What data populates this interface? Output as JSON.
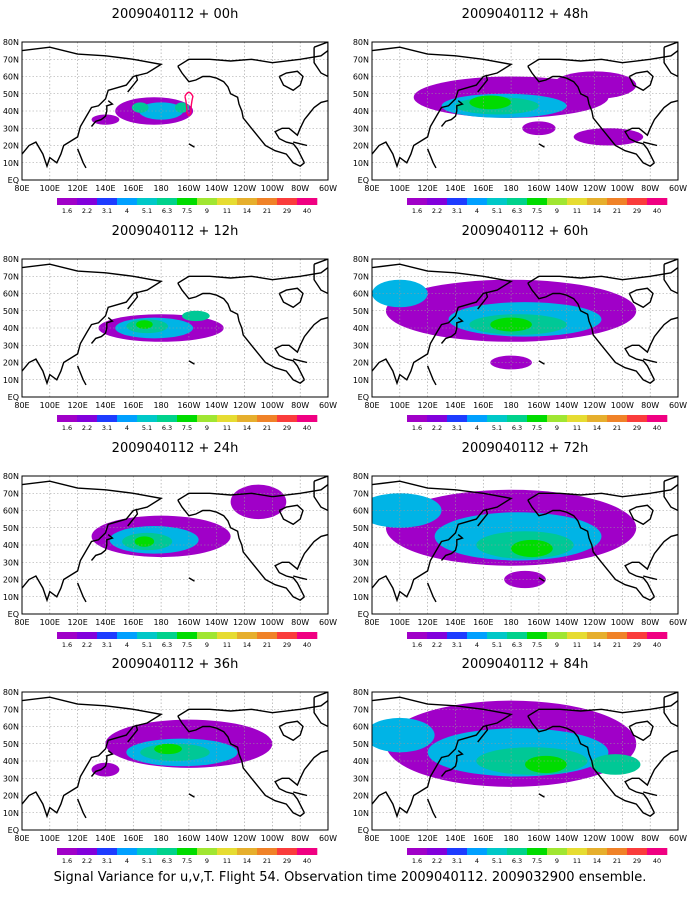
{
  "footer": "Signal Variance for u,v,T. Flight 54. Observation time 2009040112. 2009032900 ensemble.",
  "lon_labels": [
    "80E",
    "100E",
    "120E",
    "140E",
    "160E",
    "180",
    "160W",
    "140W",
    "120W",
    "100W",
    "80W",
    "60W"
  ],
  "lat_labels": [
    "EQ",
    "10N",
    "20N",
    "30N",
    "40N",
    "50N",
    "60N",
    "70N",
    "80N"
  ],
  "colorbar": {
    "labels": [
      "1.6",
      "2.2",
      "3.1",
      "4",
      "5.1",
      "6.3",
      "7.5",
      "9",
      "11",
      "14",
      "21",
      "29",
      "40"
    ],
    "colors": [
      "#a000c8",
      "#8200dc",
      "#1e3cff",
      "#00a0ff",
      "#00c8c8",
      "#00d28c",
      "#00dc00",
      "#a0e632",
      "#e6dc32",
      "#e6af2d",
      "#f08228",
      "#fa3c3c",
      "#f00082"
    ]
  },
  "panels": [
    {
      "id": "p00",
      "title": "2009040112 + 00h",
      "blobs": [
        {
          "x": 175,
          "y": 40,
          "rx": 28,
          "ry": 8,
          "l": 0
        },
        {
          "x": 180,
          "y": 40,
          "rx": 16,
          "ry": 5,
          "l": 1
        },
        {
          "x": 165,
          "y": 42,
          "rx": 6,
          "ry": 3,
          "l": 2
        },
        {
          "x": 195,
          "y": 42,
          "rx": 5,
          "ry": 3,
          "l": 2
        },
        {
          "x": 140,
          "y": 35,
          "rx": 10,
          "ry": 3,
          "l": 0
        }
      ],
      "track": true
    },
    {
      "id": "p48",
      "title": "2009040112 + 48h",
      "blobs": [
        {
          "x": 180,
          "y": 48,
          "rx": 70,
          "ry": 12,
          "l": 0
        },
        {
          "x": 175,
          "y": 43,
          "rx": 45,
          "ry": 7,
          "l": 1
        },
        {
          "x": 170,
          "y": 43,
          "rx": 30,
          "ry": 5,
          "l": 2
        },
        {
          "x": 165,
          "y": 45,
          "rx": 15,
          "ry": 4,
          "l": 3
        },
        {
          "x": 240,
          "y": 55,
          "rx": 30,
          "ry": 8,
          "l": 0
        },
        {
          "x": 250,
          "y": 25,
          "rx": 25,
          "ry": 5,
          "l": 0
        },
        {
          "x": 200,
          "y": 30,
          "rx": 12,
          "ry": 4,
          "l": 0
        }
      ],
      "track": false
    },
    {
      "id": "p12",
      "title": "2009040112 + 12h",
      "blobs": [
        {
          "x": 180,
          "y": 40,
          "rx": 45,
          "ry": 8,
          "l": 0
        },
        {
          "x": 175,
          "y": 40,
          "rx": 28,
          "ry": 6,
          "l": 1
        },
        {
          "x": 170,
          "y": 41,
          "rx": 15,
          "ry": 4,
          "l": 2
        },
        {
          "x": 168,
          "y": 42,
          "rx": 6,
          "ry": 2.5,
          "l": 3
        },
        {
          "x": 205,
          "y": 47,
          "rx": 10,
          "ry": 3,
          "l": 2
        }
      ],
      "track": false
    },
    {
      "id": "p60",
      "title": "2009040112 + 60h",
      "blobs": [
        {
          "x": 180,
          "y": 50,
          "rx": 90,
          "ry": 18,
          "l": 0
        },
        {
          "x": 190,
          "y": 45,
          "rx": 55,
          "ry": 10,
          "l": 1
        },
        {
          "x": 185,
          "y": 42,
          "rx": 35,
          "ry": 6,
          "l": 2
        },
        {
          "x": 180,
          "y": 42,
          "rx": 15,
          "ry": 4,
          "l": 3
        },
        {
          "x": 100,
          "y": 60,
          "rx": 20,
          "ry": 8,
          "l": 1
        },
        {
          "x": 180,
          "y": 20,
          "rx": 15,
          "ry": 4,
          "l": 0
        }
      ],
      "track": false
    },
    {
      "id": "p24",
      "title": "2009040112 + 24h",
      "blobs": [
        {
          "x": 180,
          "y": 45,
          "rx": 50,
          "ry": 12,
          "l": 0
        },
        {
          "x": 175,
          "y": 43,
          "rx": 32,
          "ry": 8,
          "l": 1
        },
        {
          "x": 170,
          "y": 42,
          "rx": 18,
          "ry": 5,
          "l": 2
        },
        {
          "x": 168,
          "y": 42,
          "rx": 7,
          "ry": 3,
          "l": 3
        },
        {
          "x": 250,
          "y": 65,
          "rx": 20,
          "ry": 10,
          "l": 0
        }
      ],
      "track": false
    },
    {
      "id": "p72",
      "title": "2009040112 + 72h",
      "blobs": [
        {
          "x": 180,
          "y": 50,
          "rx": 90,
          "ry": 22,
          "l": 0
        },
        {
          "x": 185,
          "y": 45,
          "rx": 60,
          "ry": 14,
          "l": 1
        },
        {
          "x": 190,
          "y": 40,
          "rx": 35,
          "ry": 8,
          "l": 2
        },
        {
          "x": 195,
          "y": 38,
          "rx": 15,
          "ry": 5,
          "l": 3
        },
        {
          "x": 100,
          "y": 60,
          "rx": 30,
          "ry": 10,
          "l": 1
        },
        {
          "x": 190,
          "y": 20,
          "rx": 15,
          "ry": 5,
          "l": 0
        }
      ],
      "track": false
    },
    {
      "id": "p36",
      "title": "2009040112 + 36h",
      "blobs": [
        {
          "x": 200,
          "y": 50,
          "rx": 60,
          "ry": 14,
          "l": 0
        },
        {
          "x": 195,
          "y": 45,
          "rx": 40,
          "ry": 8,
          "l": 1
        },
        {
          "x": 190,
          "y": 45,
          "rx": 25,
          "ry": 5,
          "l": 2
        },
        {
          "x": 185,
          "y": 47,
          "rx": 10,
          "ry": 3,
          "l": 3
        },
        {
          "x": 140,
          "y": 35,
          "rx": 10,
          "ry": 4,
          "l": 0
        }
      ],
      "track": false
    },
    {
      "id": "p84",
      "title": "2009040112 + 84h",
      "blobs": [
        {
          "x": 180,
          "y": 50,
          "rx": 90,
          "ry": 25,
          "l": 0
        },
        {
          "x": 185,
          "y": 45,
          "rx": 65,
          "ry": 14,
          "l": 1
        },
        {
          "x": 195,
          "y": 40,
          "rx": 40,
          "ry": 8,
          "l": 2
        },
        {
          "x": 205,
          "y": 38,
          "rx": 15,
          "ry": 5,
          "l": 3
        },
        {
          "x": 100,
          "y": 55,
          "rx": 25,
          "ry": 10,
          "l": 1
        },
        {
          "x": 255,
          "y": 38,
          "rx": 18,
          "ry": 6,
          "l": 2
        }
      ],
      "track": false
    }
  ]
}
